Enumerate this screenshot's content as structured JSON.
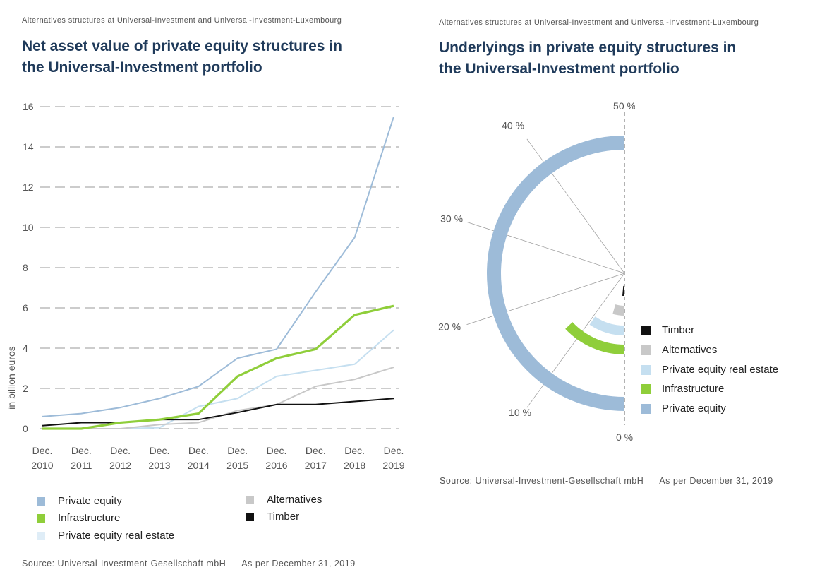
{
  "left": {
    "supertitle": "Alternatives structures at Universal-Investment and Universal-Investment-Luxembourg",
    "title_line1": "Net asset value of private equity structures in",
    "title_line2": "the Universal-Investment portfolio",
    "source": "Source: Universal-Investment-Gesellschaft mbH",
    "as_of": "As per December 31, 2019"
  },
  "right": {
    "supertitle": "Alternatives structures at Universal-Investment and Universal-Investment-Luxembourg",
    "title_line1": "Underlyings in private equity structures in",
    "title_line2": "the Universal-Investment portfolio",
    "source": "Source: Universal-Investment-Gesellschaft mbH",
    "as_of": "As per December 31, 2019"
  },
  "chart_data": [
    {
      "type": "line",
      "ylabel": "in billion euros",
      "xlabel": "",
      "ylim": [
        0,
        16
      ],
      "yticks": [
        0,
        2,
        4,
        6,
        8,
        10,
        12,
        14,
        16
      ],
      "categories": [
        "Dec. 2010",
        "Dec. 2011",
        "Dec. 2012",
        "Dec. 2013",
        "Dec. 2014",
        "Dec. 2015",
        "Dec. 2016",
        "Dec. 2017",
        "Dec. 2018",
        "Dec. 2019"
      ],
      "category_lines": [
        [
          "Dec.",
          "2010"
        ],
        [
          "Dec.",
          "2011"
        ],
        [
          "Dec.",
          "2012"
        ],
        [
          "Dec.",
          "2013"
        ],
        [
          "Dec.",
          "2014"
        ],
        [
          "Dec.",
          "2015"
        ],
        [
          "Dec.",
          "2016"
        ],
        [
          "Dec.",
          "2017"
        ],
        [
          "Dec.",
          "2018"
        ],
        [
          "Dec.",
          "2019"
        ]
      ],
      "grid": "horizontal dashed",
      "legend_placement": "bottom",
      "series": [
        {
          "name": "Private equity",
          "color": "#9dbbd8",
          "values": [
            0.6,
            0.75,
            1.05,
            1.5,
            2.1,
            3.5,
            3.95,
            6.8,
            9.5,
            15.5
          ]
        },
        {
          "name": "Infrastructure",
          "color": "#8fce3a",
          "values": [
            0.0,
            0.0,
            0.3,
            0.45,
            0.75,
            2.6,
            3.5,
            3.95,
            5.65,
            6.1
          ]
        },
        {
          "name": "Private equity real estate",
          "color": "#c5dff0",
          "values": [
            0.0,
            0.0,
            0.0,
            0.05,
            1.1,
            1.5,
            2.6,
            2.9,
            3.2,
            4.9
          ]
        },
        {
          "name": "Alternatives",
          "color": "#c8c8c8",
          "values": [
            0.0,
            0.0,
            0.0,
            0.2,
            0.3,
            0.9,
            1.2,
            2.1,
            2.45,
            3.05
          ]
        },
        {
          "name": "Timber",
          "color": "#111111",
          "values": [
            0.15,
            0.3,
            0.3,
            0.45,
            0.45,
            0.8,
            1.2,
            1.2,
            1.35,
            1.5
          ]
        }
      ]
    },
    {
      "type": "radial-bar",
      "range": [
        0,
        50
      ],
      "unit": "%",
      "axis_labels": [
        "0 %",
        "10 %",
        "20 %",
        "30 %",
        "40 %",
        "50 %"
      ],
      "legend_placement": "right",
      "series": [
        {
          "name": "Timber",
          "color": "#111111",
          "value": 1.5
        },
        {
          "name": "Alternatives",
          "color": "#c8c8c8",
          "value": 4.5
        },
        {
          "name": "Private equity real estate",
          "color": "#c5dff0",
          "value": 9.5
        },
        {
          "name": "Infrastructure",
          "color": "#8fce3a",
          "value": 13
        },
        {
          "name": "Private equity",
          "color": "#9dbbd8",
          "value": 50
        }
      ]
    }
  ]
}
